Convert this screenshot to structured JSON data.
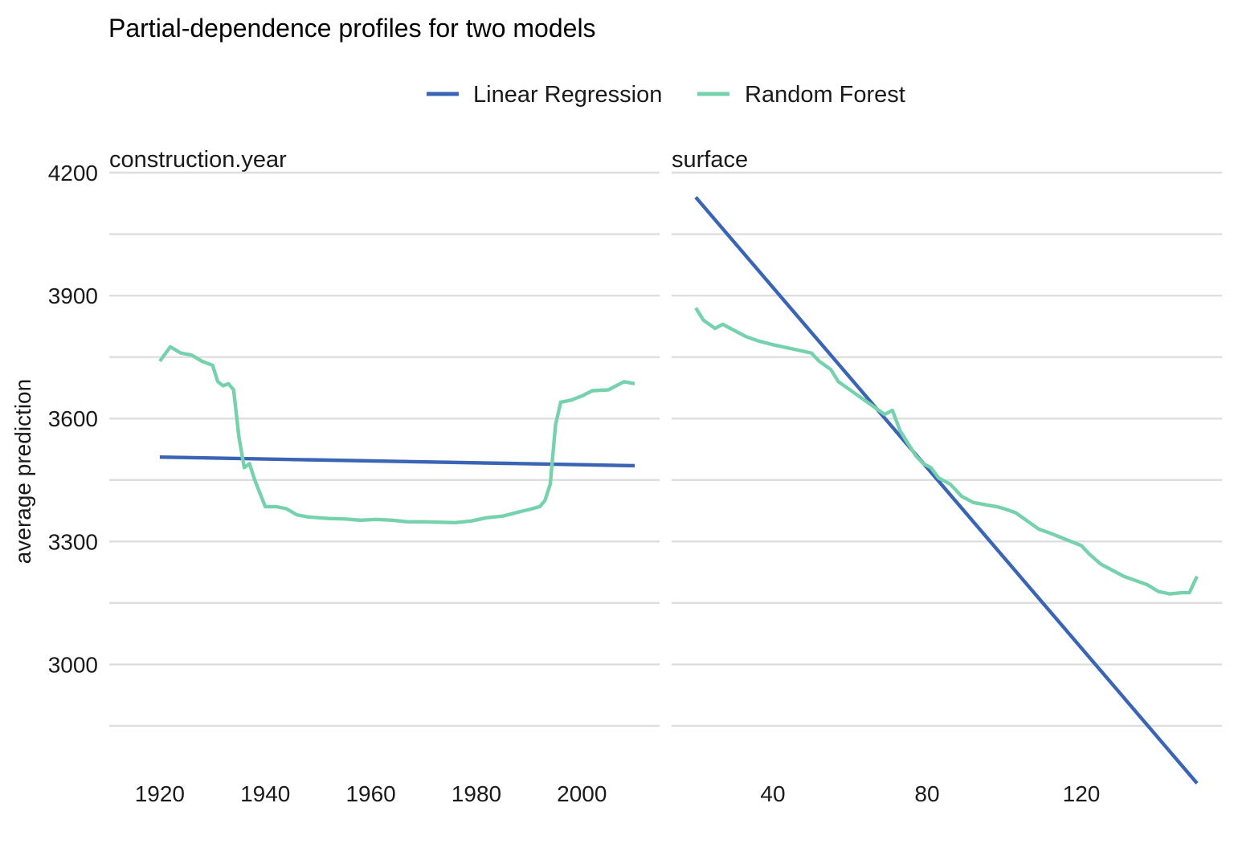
{
  "chart_data": {
    "type": "line",
    "title": "Partial-dependence profiles for two models",
    "ylabel": "average prediction",
    "xlabel": "",
    "legend_position": "top",
    "grid": true,
    "ylim": [
      2750,
      4200
    ],
    "y_ticks": [
      3000,
      3300,
      3600,
      3900,
      4200
    ],
    "series_names": [
      "Linear Regression",
      "Random Forest"
    ],
    "colors": {
      "Linear Regression": "#3a65b5",
      "Random Forest": "#76d2ad"
    },
    "panels": [
      {
        "strip": "construction.year",
        "xlim": [
          1915.3,
          2010
        ],
        "x_ticks": [
          1920,
          1940,
          1960,
          1980,
          2000
        ],
        "x_tick_labels": [
          "1920",
          "1940",
          "1960",
          "1980",
          "2000"
        ],
        "series": [
          {
            "name": "Linear Regression",
            "x": [
              1920,
              2010
            ],
            "y": [
              3506,
              3485
            ]
          },
          {
            "name": "Random Forest",
            "x": [
              1920,
              1922,
              1924,
              1926,
              1928,
              1930,
              1931,
              1932,
              1933,
              1934,
              1935,
              1936,
              1937,
              1938,
              1940,
              1942,
              1944,
              1946,
              1948,
              1950,
              1952,
              1955,
              1958,
              1961,
              1964,
              1967,
              1970,
              1973,
              1976,
              1979,
              1982,
              1985,
              1988,
              1990,
              1992,
              1993,
              1994,
              1995,
              1996,
              1998,
              2000,
              2002,
              2005,
              2008,
              2010
            ],
            "y": [
              3740,
              3775,
              3760,
              3755,
              3740,
              3730,
              3690,
              3680,
              3685,
              3670,
              3555,
              3480,
              3490,
              3450,
              3385,
              3385,
              3380,
              3365,
              3360,
              3358,
              3356,
              3355,
              3352,
              3354,
              3352,
              3348,
              3348,
              3347,
              3346,
              3350,
              3358,
              3362,
              3372,
              3378,
              3385,
              3400,
              3440,
              3585,
              3640,
              3645,
              3655,
              3668,
              3670,
              3690,
              3685
            ]
          }
        ]
      },
      {
        "strip": "surface",
        "xlim": [
          20,
          150
        ],
        "x_ticks": [
          40,
          80,
          120
        ],
        "x_tick_labels": [
          "40",
          "80",
          "120"
        ],
        "series": [
          {
            "name": "Linear Regression",
            "x": [
              20,
              150
            ],
            "y": [
              4140,
              2710
            ]
          },
          {
            "name": "Random Forest",
            "x": [
              20,
              22,
              25,
              27,
              30,
              33,
              36,
              40,
              45,
              50,
              52,
              55,
              57,
              60,
              63,
              66,
              69,
              71,
              73,
              75,
              77,
              79,
              81,
              83,
              86,
              89,
              92,
              95,
              98,
              100,
              103,
              106,
              109,
              112,
              116,
              120,
              122,
              125,
              128,
              131,
              134,
              137,
              140,
              143,
              146,
              148,
              150
            ],
            "y": [
              3870,
              3840,
              3820,
              3830,
              3815,
              3800,
              3790,
              3780,
              3770,
              3760,
              3740,
              3720,
              3690,
              3670,
              3650,
              3630,
              3610,
              3620,
              3570,
              3540,
              3510,
              3490,
              3480,
              3455,
              3440,
              3410,
              3395,
              3390,
              3385,
              3380,
              3370,
              3350,
              3330,
              3320,
              3305,
              3290,
              3270,
              3245,
              3230,
              3215,
              3205,
              3195,
              3178,
              3172,
              3175,
              3175,
              3215
            ]
          }
        ]
      }
    ]
  }
}
